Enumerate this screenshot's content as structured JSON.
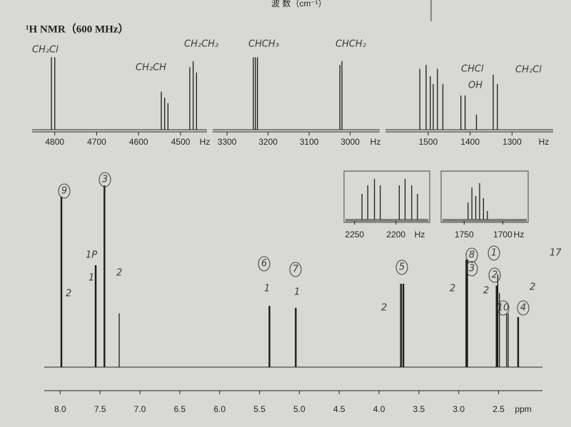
{
  "header": "波    数（cm⁻¹）",
  "chart_data": [
    {
      "type": "spectrum",
      "title": "¹H NMR（600 MHz）",
      "x_label": "Hz",
      "x": [
        4808,
        4800,
        4546,
        4538,
        4530,
        4478,
        4470,
        4462
      ],
      "values": [
        95,
        95,
        50,
        42,
        35,
        82,
        90,
        75
      ],
      "xlim": [
        4854,
        4437
      ],
      "ylim": [
        0,
        100
      ],
      "xticks": [
        4800,
        4700,
        4600,
        4500
      ],
      "color": "#1a1a1a"
    },
    {
      "type": "spectrum",
      "x_label": "Hz",
      "x": [
        3236,
        3231,
        3226,
        3025,
        3020
      ],
      "values": [
        95,
        95,
        95,
        85,
        90
      ],
      "xlim": [
        3335,
        2928
      ],
      "ylim": [
        0,
        100
      ],
      "xticks": [
        3300,
        3200,
        3100,
        3000
      ],
      "color": "#1a1a1a"
    },
    {
      "type": "spectrum",
      "x_label": "Hz",
      "x": [
        1520,
        1505,
        1495,
        1488,
        1478,
        1465,
        1422,
        1412,
        1385,
        1345,
        1335
      ],
      "values": [
        80,
        85,
        70,
        60,
        80,
        60,
        45,
        45,
        20,
        72,
        60
      ],
      "xlim": [
        1602,
        1202
      ],
      "ylim": [
        0,
        100
      ],
      "xticks": [
        1500,
        1400,
        1300
      ],
      "color": "#1a1a1a"
    },
    {
      "type": "spectrum",
      "x_label": "Hz",
      "x": [
        2241,
        2234,
        2226,
        2219,
        2196,
        2189,
        2181,
        2174
      ],
      "values": [
        60,
        80,
        95,
        80,
        80,
        95,
        80,
        60
      ],
      "xlim": [
        2261,
        2161
      ],
      "ylim": [
        0,
        100
      ],
      "xticks": [
        2250,
        2200
      ],
      "color": "#1a1a1a"
    },
    {
      "type": "spectrum",
      "x_label": "Hz",
      "x": [
        1745,
        1740,
        1735,
        1730,
        1725,
        1720
      ],
      "values": [
        40,
        75,
        55,
        85,
        50,
        20
      ],
      "xlim": [
        1778,
        1669
      ],
      "ylim": [
        0,
        100
      ],
      "xticks": [
        1750,
        1700
      ],
      "color": "#1a1a1a"
    },
    {
      "type": "spectrum",
      "x_label": "ppm",
      "x": [
        7.99,
        7.98,
        7.56,
        7.55,
        7.45,
        7.44,
        7.26,
        5.38,
        5.37,
        5.05,
        5.04,
        3.73,
        3.72,
        3.7,
        3.69,
        2.91,
        2.9,
        2.89,
        2.53,
        2.52,
        2.51,
        2.49,
        2.4,
        2.38,
        2.26,
        2.25
      ],
      "values": [
        92,
        92,
        55,
        55,
        98,
        98,
        29,
        33,
        33,
        32,
        32,
        45,
        45,
        45,
        45,
        58,
        58,
        58,
        44,
        44,
        50,
        40,
        29,
        29,
        27,
        27
      ],
      "xlim": [
        8.2,
        1.95
      ],
      "ylim": [
        0,
        100
      ],
      "xticks": [
        {
          "value": 8,
          "label": "8.0"
        },
        7.5,
        {
          "value": 7,
          "label": "7.0"
        },
        6.5,
        {
          "value": 6,
          "label": "6.0"
        },
        5.5,
        {
          "value": 5,
          "label": "5.0"
        },
        4.5,
        {
          "value": 4,
          "label": "4.0"
        },
        3.5,
        {
          "value": 3,
          "label": "3.0"
        },
        2.5
      ],
      "color": "#1a1a1a"
    }
  ],
  "handwriting": [
    "CH₂Cl",
    "CH₂CH",
    "CH₂CH₂",
    "CHCH₃",
    "CHCH₂",
    "CHCl",
    "OH",
    "CH₂Cl",
    "9",
    "3",
    "6",
    "7",
    "5",
    "8",
    "3",
    "1",
    "2",
    "10",
    "4",
    "2",
    "1P",
    "1",
    "2",
    "1",
    "1",
    "2",
    "2",
    "2",
    "2",
    "17"
  ]
}
